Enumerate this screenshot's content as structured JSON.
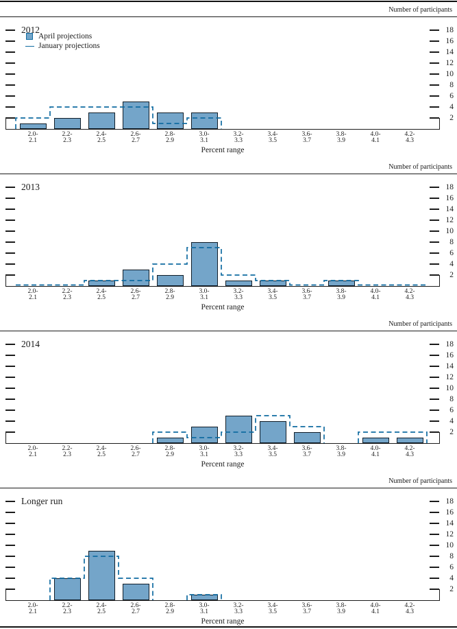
{
  "figure": {
    "y_axis_title": "Number of participants",
    "x_axis_title": "Percent range",
    "legend": {
      "april": "April projections",
      "january": "January projections"
    }
  },
  "colors": {
    "bar_fill": "#74a5c9",
    "bar_border": "#101d28",
    "dashed_line": "#0f6ba1",
    "axis": "#1b1b1b"
  },
  "y_ticks": [
    2,
    4,
    6,
    8,
    10,
    12,
    14,
    16,
    18
  ],
  "categories": [
    "2.0–2.1",
    "2.2–2.3",
    "2.4–2.5",
    "2.6–2.7",
    "2.8–2.9",
    "3.0–3.1",
    "3.2–3.3",
    "3.4–3.5",
    "3.6–3.7",
    "3.8–3.9",
    "4.0–4.1",
    "4.2–4.3"
  ],
  "chart_data": [
    {
      "type": "bar",
      "title": "2012",
      "xlabel": "Percent range",
      "ylabel": "Number of participants",
      "ylim": [
        0,
        19
      ],
      "categories": [
        "2.0–2.1",
        "2.2–2.3",
        "2.4–2.5",
        "2.6–2.7",
        "2.8–2.9",
        "3.0–3.1",
        "3.2–3.3",
        "3.4–3.5",
        "3.6–3.7",
        "3.8–3.9",
        "4.0–4.1",
        "4.2–4.3"
      ],
      "series": [
        {
          "name": "April projections",
          "style": "filled-bar",
          "values": [
            1,
            2,
            3,
            5,
            3,
            3,
            0,
            0,
            0,
            0,
            0,
            0
          ]
        },
        {
          "name": "January projections",
          "style": "dashed-step",
          "draw_zero_level": false,
          "values": [
            2,
            4,
            4,
            4,
            1,
            2,
            0,
            0,
            0,
            0,
            0,
            0
          ]
        }
      ]
    },
    {
      "type": "bar",
      "title": "2013",
      "xlabel": "Percent range",
      "ylabel": "Number of participants",
      "ylim": [
        0,
        19
      ],
      "categories": [
        "2.0–2.1",
        "2.2–2.3",
        "2.4–2.5",
        "2.6–2.7",
        "2.8–2.9",
        "3.0–3.1",
        "3.2–3.3",
        "3.4–3.5",
        "3.6–3.7",
        "3.8–3.9",
        "4.0–4.1",
        "4.2–4.3"
      ],
      "series": [
        {
          "name": "April projections",
          "style": "filled-bar",
          "values": [
            0,
            0,
            1,
            3,
            2,
            8,
            1,
            1,
            0,
            1,
            0,
            0
          ]
        },
        {
          "name": "January projections",
          "style": "dashed-step",
          "draw_zero_level": true,
          "values": [
            0,
            0,
            1,
            1,
            4,
            7,
            2,
            1,
            0,
            1,
            0,
            0
          ]
        }
      ]
    },
    {
      "type": "bar",
      "title": "2014",
      "xlabel": "Percent range",
      "ylabel": "Number of participants",
      "ylim": [
        0,
        19
      ],
      "categories": [
        "2.0–2.1",
        "2.2–2.3",
        "2.4–2.5",
        "2.6–2.7",
        "2.8–2.9",
        "3.0–3.1",
        "3.2–3.3",
        "3.4–3.5",
        "3.6–3.7",
        "3.8–3.9",
        "4.0–4.1",
        "4.2–4.3"
      ],
      "series": [
        {
          "name": "April projections",
          "style": "filled-bar",
          "values": [
            0,
            0,
            0,
            0,
            1,
            3,
            5,
            4,
            2,
            0,
            1,
            1
          ]
        },
        {
          "name": "January projections",
          "style": "dashed-step",
          "draw_zero_level": false,
          "values": [
            0,
            0,
            0,
            0,
            2,
            1,
            2,
            5,
            3,
            0,
            2,
            2
          ]
        }
      ]
    },
    {
      "type": "bar",
      "title": "Longer run",
      "xlabel": "Percent range",
      "ylabel": "Number of participants",
      "ylim": [
        0,
        19
      ],
      "categories": [
        "2.0–2.1",
        "2.2–2.3",
        "2.4–2.5",
        "2.6–2.7",
        "2.8–2.9",
        "3.0–3.1",
        "3.2–3.3",
        "3.4–3.5",
        "3.6–3.7",
        "3.8–3.9",
        "4.0–4.1",
        "4.2–4.3"
      ],
      "series": [
        {
          "name": "April projections",
          "style": "filled-bar",
          "values": [
            0,
            4,
            9,
            3,
            0,
            1,
            0,
            0,
            0,
            0,
            0,
            0
          ]
        },
        {
          "name": "January projections",
          "style": "dashed-step",
          "draw_zero_level": false,
          "values": [
            0,
            4,
            8,
            4,
            0,
            1,
            0,
            0,
            0,
            0,
            0,
            0
          ]
        }
      ]
    }
  ]
}
